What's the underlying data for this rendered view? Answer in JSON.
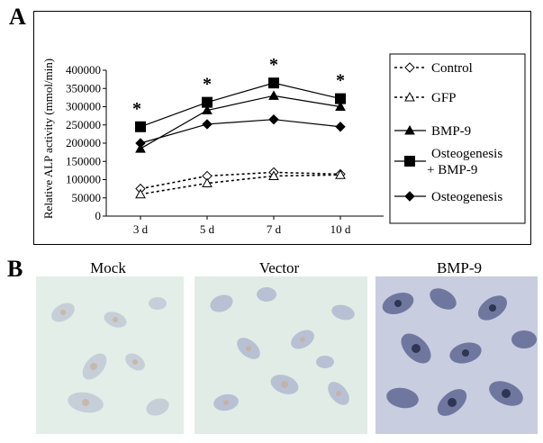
{
  "panel_a": {
    "letter": "A"
  },
  "panel_b": {
    "letter": "B",
    "images": [
      {
        "label": "Mock"
      },
      {
        "label": "Vector"
      },
      {
        "label": "BMP-9"
      }
    ]
  },
  "chart_data": {
    "type": "line",
    "title": "",
    "xlabel": "",
    "ylabel": "Relative ALP activity (mmol/min)",
    "categories": [
      "3 d",
      "5 d",
      "7 d",
      "10 d"
    ],
    "ylim": [
      0,
      400000
    ],
    "yticks": [
      0,
      50000,
      100000,
      150000,
      200000,
      250000,
      300000,
      350000,
      400000
    ],
    "significance_marks": [
      "*",
      "*",
      "*",
      "*"
    ],
    "series": [
      {
        "name": "Control",
        "marker": "open-diamond",
        "dashed": true,
        "values": [
          75000,
          110000,
          120000,
          115000
        ]
      },
      {
        "name": "GFP",
        "marker": "open-triangle",
        "dashed": true,
        "values": [
          60000,
          90000,
          110000,
          113000
        ]
      },
      {
        "name": "BMP-9",
        "marker": "filled-triangle",
        "dashed": false,
        "values": [
          185000,
          290000,
          330000,
          300000
        ]
      },
      {
        "name": "Osteogenesis\n+ BMP-9",
        "marker": "filled-square",
        "dashed": false,
        "values": [
          245000,
          312000,
          365000,
          322000
        ]
      },
      {
        "name": "Osteogenesis",
        "marker": "filled-diamond",
        "dashed": false,
        "values": [
          200000,
          252000,
          265000,
          245000
        ]
      }
    ]
  }
}
